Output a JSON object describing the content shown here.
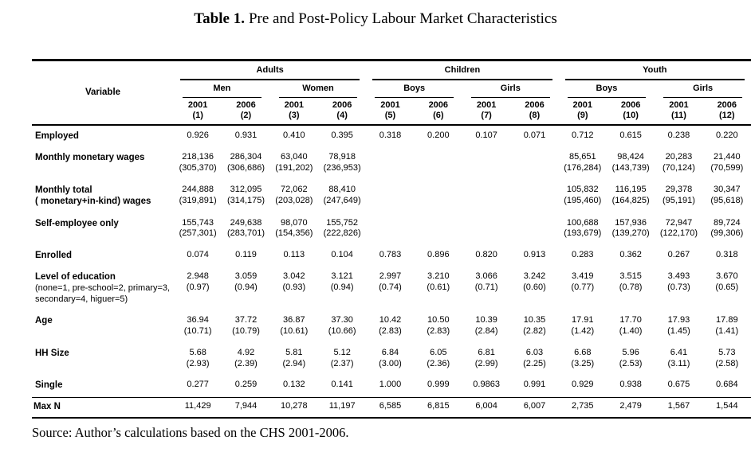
{
  "style": {
    "text_color": "#000000",
    "background": "#ffffff",
    "rule_color": "#000000"
  },
  "title": {
    "label": "Table 1.",
    "text": "Pre and Post-Policy Labour Market Characteristics"
  },
  "source": "Source: Author’s calculations based on the CHS 2001-2006.",
  "table": {
    "variable_header": "Variable",
    "groups": [
      {
        "label": "Adults",
        "subgroups": [
          "Men",
          "Women"
        ]
      },
      {
        "label": "Children",
        "subgroups": [
          "Boys",
          "Girls"
        ]
      },
      {
        "label": "Youth",
        "subgroups": [
          "Boys",
          "Girls"
        ]
      }
    ],
    "year_cols": [
      {
        "year": "2001",
        "num": "(1)"
      },
      {
        "year": "2006",
        "num": "(2)"
      },
      {
        "year": "2001",
        "num": "(3)"
      },
      {
        "year": "2006",
        "num": "(4)"
      },
      {
        "year": "2001",
        "num": "(5)"
      },
      {
        "year": "2006",
        "num": "(6)"
      },
      {
        "year": "2001",
        "num": "(7)"
      },
      {
        "year": "2006",
        "num": "(8)"
      },
      {
        "year": "2001",
        "num": "(9)"
      },
      {
        "year": "2006",
        "num": "(10)"
      },
      {
        "year": "2001",
        "num": "(11)"
      },
      {
        "year": "2006",
        "num": "(12)"
      }
    ],
    "rows": [
      {
        "name_lines": [
          "Employed"
        ],
        "values": [
          "0.926",
          "0.931",
          "0.410",
          "0.395",
          "0.318",
          "0.200",
          "0.107",
          "0.071",
          "0.712",
          "0.615",
          "0.238",
          "0.220"
        ]
      },
      {
        "name_lines": [
          "Monthly monetary wages"
        ],
        "values": [
          "218,136",
          "286,304",
          "63,040",
          "78,918",
          "",
          "",
          "",
          "",
          "85,651",
          "98,424",
          "20,283",
          "21,440"
        ],
        "sd": [
          "(305,370)",
          "(306,686)",
          "(191,202)",
          "(236,953)",
          "",
          "",
          "",
          "",
          "(176,284)",
          "(143,739)",
          "(70,124)",
          "(70,599)"
        ]
      },
      {
        "name_lines": [
          "Monthly total",
          "( monetary+in-kind) wages"
        ],
        "values": [
          "244,888",
          "312,095",
          "72,062",
          "88,410",
          "",
          "",
          "",
          "",
          "105,832",
          "116,195",
          "29,378",
          "30,347"
        ],
        "sd": [
          "(319,891)",
          "(314,175)",
          "(203,028)",
          "(247,649)",
          "",
          "",
          "",
          "",
          "(195,460)",
          "(164,825)",
          "(95,191)",
          "(95,618)"
        ]
      },
      {
        "name_lines": [
          "Self-employee only"
        ],
        "values": [
          "155,743",
          "249,638",
          "98,070",
          "155,752",
          "",
          "",
          "",
          "",
          "100,688",
          "157,936",
          "72,947",
          "89,724"
        ],
        "sd": [
          "(257,301)",
          "(283,701)",
          "(154,356)",
          "(222,826)",
          "",
          "",
          "",
          "",
          "(193,679)",
          "(139,270)",
          "(122,170)",
          "(99,306)"
        ]
      },
      {
        "name_lines": [
          "Enrolled"
        ],
        "values": [
          "0.074",
          "0.119",
          "0.113",
          "0.104",
          "0.783",
          "0.896",
          "0.820",
          "0.913",
          "0.283",
          "0.362",
          "0.267",
          "0.318"
        ]
      },
      {
        "name_lines": [
          "Level of education"
        ],
        "note_lines": [
          "(none=1, pre-school=2, primary=3,",
          "secondary=4, higuer=5)"
        ],
        "values": [
          "2.948",
          "3.059",
          "3.042",
          "3.121",
          "2.997",
          "3.210",
          "3.066",
          "3.242",
          "3.419",
          "3.515",
          "3.493",
          "3.670"
        ],
        "sd": [
          "(0.97)",
          "(0.94)",
          "(0.93)",
          "(0.94)",
          "(0.74)",
          "(0.61)",
          "(0.71)",
          "(0.60)",
          "(0.77)",
          "(0.78)",
          "(0.73)",
          "(0.65)"
        ]
      },
      {
        "name_lines": [
          "Age"
        ],
        "values": [
          "36.94",
          "37.72",
          "36.87",
          "37.30",
          "10.42",
          "10.50",
          "10.39",
          "10.35",
          "17.91",
          "17.70",
          "17.93",
          "17.89"
        ],
        "sd": [
          "(10.71)",
          "(10.79)",
          "(10.61)",
          "(10.66)",
          "(2.83)",
          "(2.83)",
          "(2.84)",
          "(2.82)",
          "(1.42)",
          "(1.40)",
          "(1.45)",
          "(1.41)"
        ]
      },
      {
        "name_lines": [
          "HH Size"
        ],
        "values": [
          "5.68",
          "4.92",
          "5.81",
          "5.12",
          "6.84",
          "6.05",
          "6.81",
          "6.03",
          "6.68",
          "5.96",
          "6.41",
          "5.73"
        ],
        "sd": [
          "(2.93)",
          "(2.39)",
          "(2.94)",
          "(2.37)",
          "(3.00)",
          "(2.36)",
          "(2.99)",
          "(2.25)",
          "(3.25)",
          "(2.53)",
          "(3.11)",
          "(2.58)"
        ]
      },
      {
        "name_lines": [
          "Single"
        ],
        "values": [
          "0.277",
          "0.259",
          "0.132",
          "0.141",
          "1.000",
          "0.999",
          "0.9863",
          "0.991",
          "0.929",
          "0.938",
          "0.675",
          "0.684"
        ]
      },
      {
        "name_lines": [
          "Max N"
        ],
        "top_border": true,
        "values": [
          "11,429",
          "7,944",
          "10,278",
          "11,197",
          "6,585",
          "6,815",
          "6,004",
          "6,007",
          "2,735",
          "2,479",
          "1,567",
          "1,544"
        ]
      }
    ]
  }
}
